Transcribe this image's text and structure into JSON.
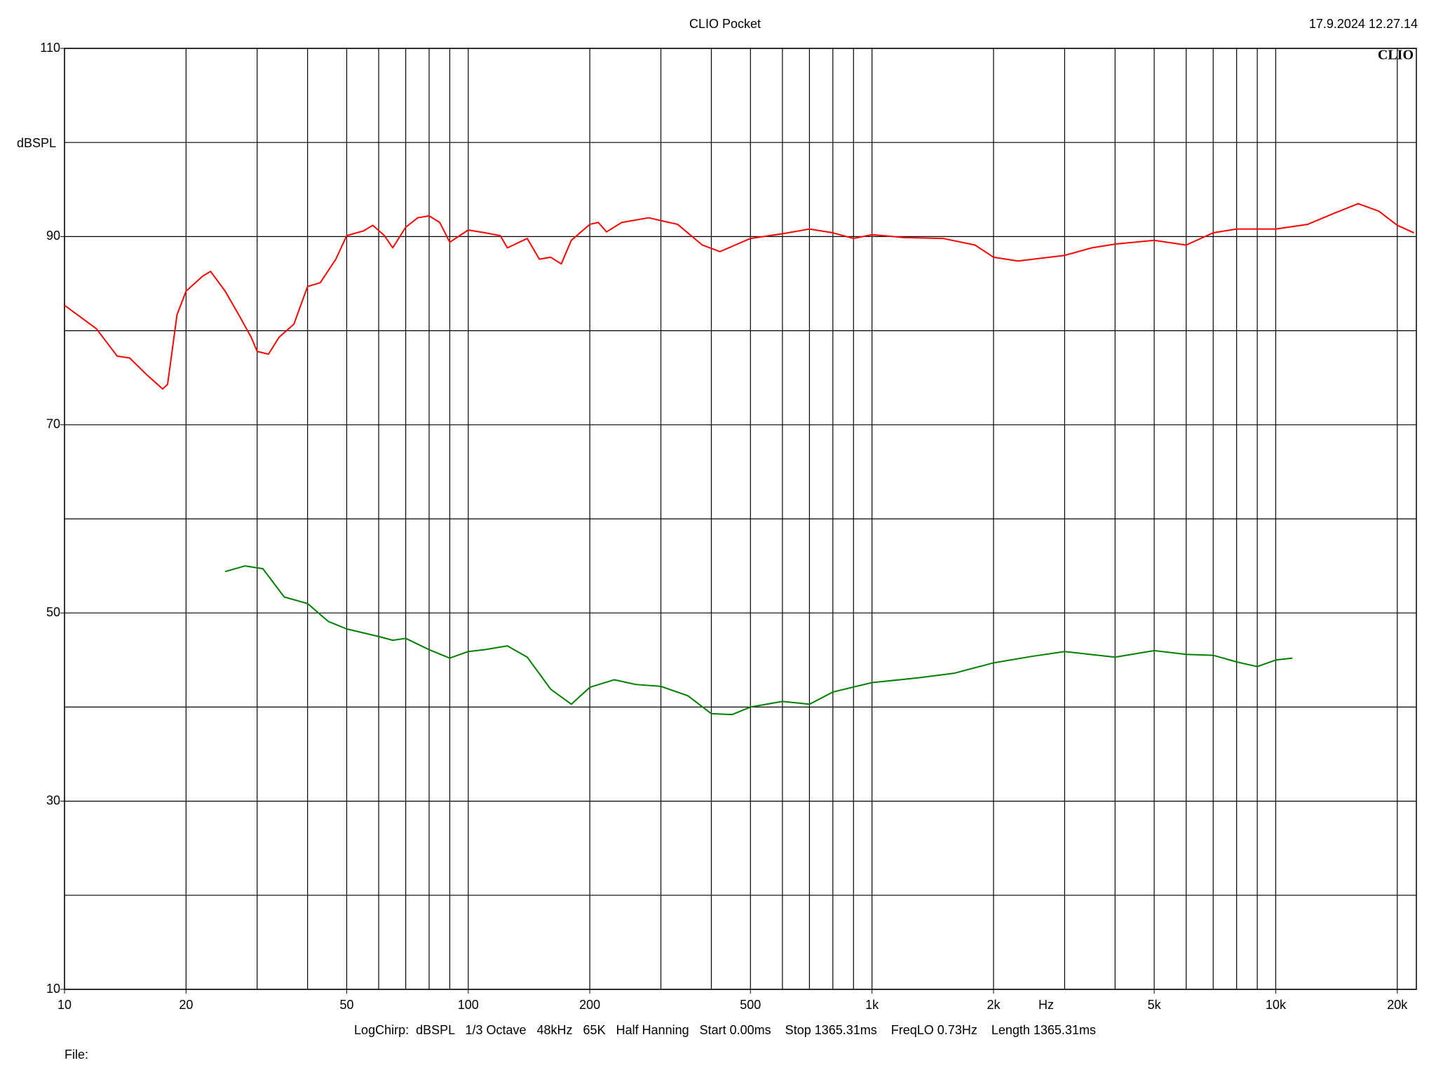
{
  "chart_data": {
    "type": "line",
    "title": "CLIO Pocket",
    "timestamp": "17.9.2024 12.27.14",
    "logo": "CLIO",
    "y_label": "dBSPL",
    "x_label": "Hz",
    "footer": "LogChirp:  dBSPL   1/3 Octave   48kHz   65K   Half Hanning   Start 0.00ms    Stop 1365.31ms    FreqLO 0.73Hz    Length 1365.31ms",
    "file_label": "File:",
    "x_log": true,
    "grid": true,
    "xlim": [
      10,
      22300
    ],
    "ylim": [
      10,
      110
    ],
    "xticks": [
      10,
      20,
      50,
      100,
      200,
      500,
      {
        "value": 1000,
        "label": "1k"
      },
      {
        "value": 2000,
        "label": "2k"
      },
      {
        "value": 5000,
        "label": "5k"
      },
      {
        "value": 10000,
        "label": "10k"
      },
      {
        "value": 20000,
        "label": "20k"
      }
    ],
    "yticks": [
      10,
      30,
      50,
      70,
      90,
      110
    ],
    "xgrid": [
      10,
      20,
      30,
      40,
      50,
      60,
      70,
      80,
      90,
      100,
      200,
      300,
      400,
      500,
      600,
      700,
      800,
      900,
      1000,
      2000,
      3000,
      4000,
      5000,
      6000,
      7000,
      8000,
      9000,
      10000,
      20000
    ],
    "ygrid": [
      10,
      20,
      30,
      40,
      50,
      60,
      70,
      80,
      90,
      100,
      110
    ],
    "series": [
      {
        "color": "#ff0000",
        "x": [
          10,
          12,
          13.5,
          14.5,
          16,
          17.5,
          18,
          19,
          20,
          22,
          23,
          25,
          27,
          29,
          30,
          32,
          34,
          37,
          40,
          43,
          47,
          50,
          55,
          58,
          62,
          65,
          70,
          75,
          80,
          85,
          90,
          100,
          110,
          120,
          125,
          140,
          150,
          160,
          170,
          180,
          200,
          210,
          220,
          240,
          280,
          300,
          330,
          380,
          420,
          500,
          600,
          700,
          800,
          900,
          1000,
          1200,
          1500,
          1800,
          2000,
          2300,
          3000,
          3500,
          4000,
          5000,
          6000,
          7000,
          8000,
          10000,
          12000,
          14000,
          16000,
          18000,
          20000,
          22000
        ],
        "values": [
          82.7,
          80.2,
          77.3,
          77.1,
          75.3,
          73.8,
          74.3,
          81.7,
          84.2,
          85.8,
          86.3,
          84.2,
          81.7,
          79.3,
          77.8,
          77.5,
          79.3,
          80.7,
          84.7,
          85.1,
          87.6,
          90.1,
          90.6,
          91.2,
          90.1,
          88.8,
          91.0,
          92.0,
          92.2,
          91.5,
          89.4,
          90.7,
          90.4,
          90.1,
          88.8,
          89.8,
          87.6,
          87.8,
          87.1,
          89.6,
          91.3,
          91.5,
          90.5,
          91.5,
          92.0,
          91.7,
          91.3,
          89.1,
          88.4,
          89.8,
          90.3,
          90.8,
          90.4,
          89.8,
          90.2,
          89.9,
          89.8,
          89.1,
          87.8,
          87.4,
          88.0,
          88.8,
          89.2,
          89.6,
          89.1,
          90.4,
          90.8,
          90.8,
          91.3,
          92.5,
          93.5,
          92.7,
          91.2,
          90.4
        ]
      },
      {
        "color": "#008000",
        "x": [
          25,
          28,
          31,
          35,
          40,
          45,
          50,
          60,
          65,
          70,
          80,
          90,
          100,
          110,
          125,
          140,
          160,
          180,
          200,
          230,
          260,
          300,
          350,
          400,
          450,
          500,
          600,
          700,
          800,
          1000,
          1300,
          1600,
          2000,
          2500,
          3000,
          4000,
          5000,
          6000,
          7000,
          8000,
          9000,
          10000,
          11000
        ],
        "values": [
          54.4,
          55.0,
          54.7,
          51.7,
          51.0,
          49.1,
          48.3,
          47.5,
          47.1,
          47.3,
          46.1,
          45.2,
          45.9,
          46.1,
          46.5,
          45.3,
          41.9,
          40.3,
          42.1,
          42.9,
          42.4,
          42.2,
          41.2,
          39.3,
          39.2,
          40.0,
          40.6,
          40.3,
          41.6,
          42.6,
          43.1,
          43.6,
          44.7,
          45.4,
          45.9,
          45.3,
          46.0,
          45.6,
          45.5,
          44.8,
          44.3,
          45.0,
          45.2
        ]
      }
    ]
  }
}
